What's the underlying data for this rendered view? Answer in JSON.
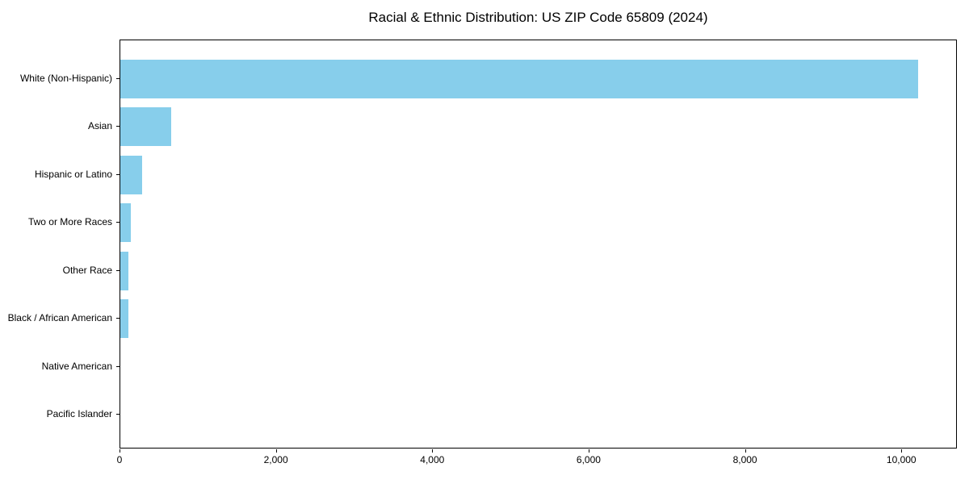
{
  "title": "Racial & Ethnic Distribution: US ZIP Code 65809 (2024)",
  "chart_data": {
    "type": "bar",
    "orientation": "horizontal",
    "title": "Racial & Ethnic Distribution: US ZIP Code 65809 (2024)",
    "categories": [
      "White (Non-Hispanic)",
      "Asian",
      "Hispanic or Latino",
      "Two or More Races",
      "Other Race",
      "Black / African American",
      "Native American",
      "Pacific Islander"
    ],
    "values": [
      10200,
      650,
      275,
      130,
      100,
      100,
      0,
      0
    ],
    "xlabel": "",
    "ylabel": "",
    "xlim": [
      0,
      10710
    ],
    "x_ticks": [
      0,
      2000,
      4000,
      6000,
      8000,
      10000
    ],
    "x_tick_labels": [
      "0",
      "2,000",
      "4,000",
      "6,000",
      "8,000",
      "10,000"
    ],
    "bar_color": "#87CEEB",
    "axis_color": "#000000",
    "background_color": "#ffffff",
    "grid": false,
    "legend": "none"
  }
}
